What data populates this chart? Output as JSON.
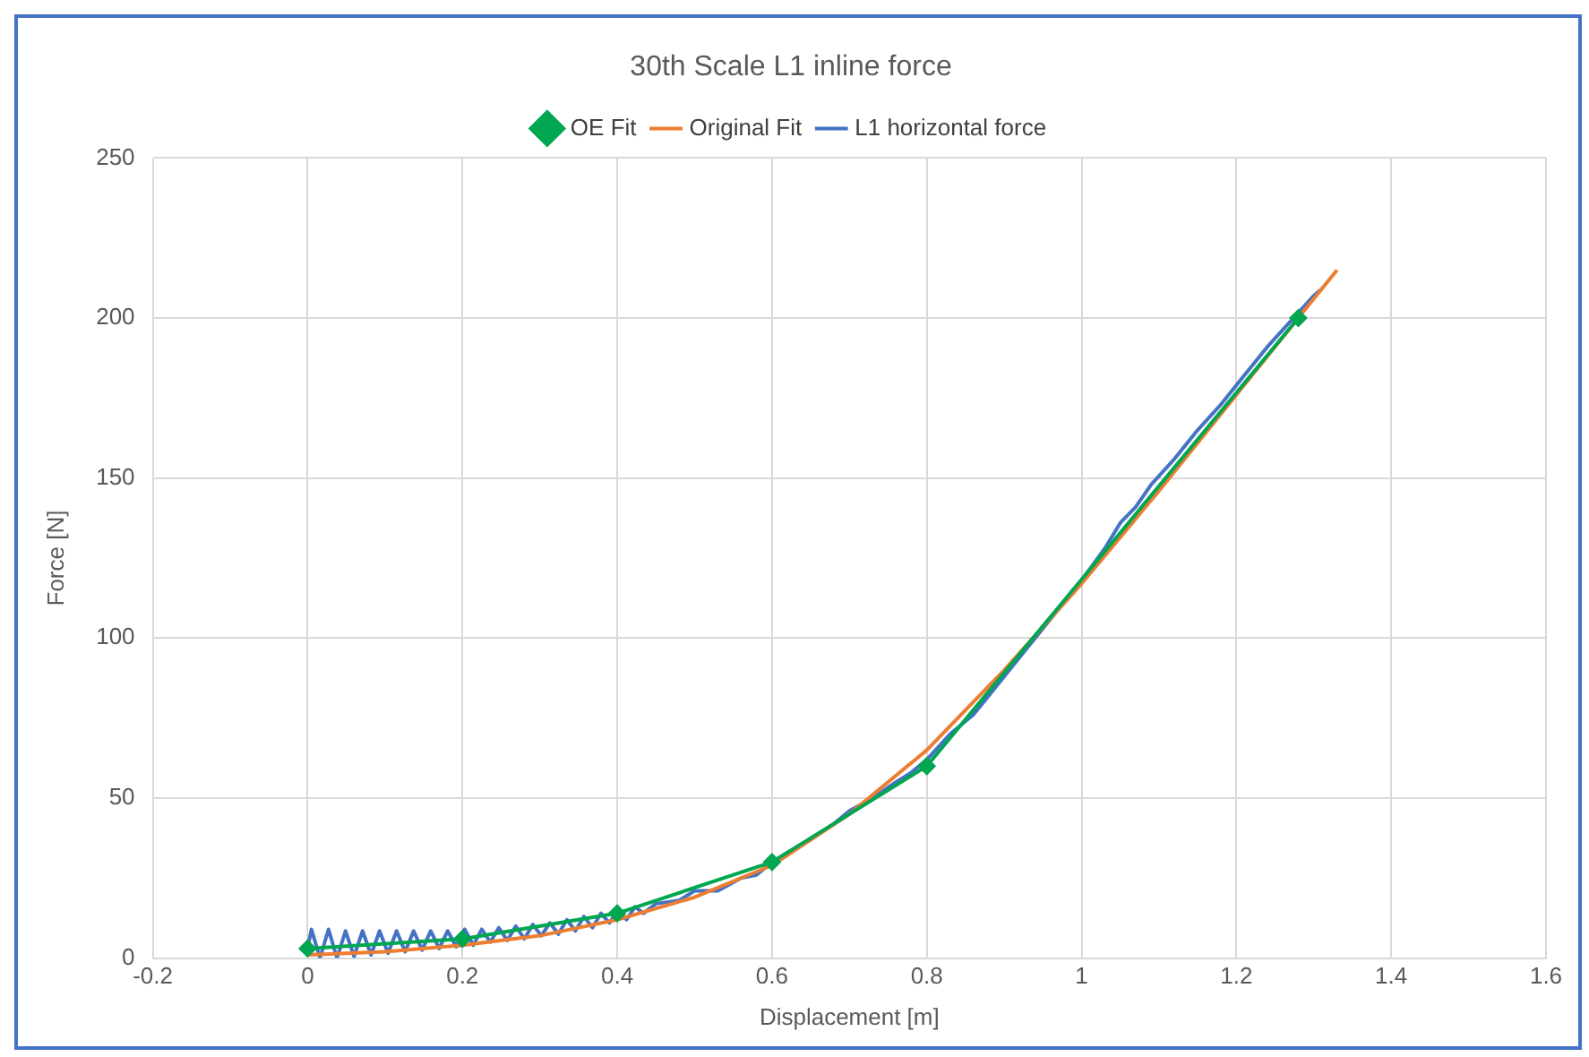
{
  "chart_data": {
    "type": "line",
    "title": "30th Scale L1 inline force",
    "xlabel": "Displacement [m]",
    "ylabel": "Force [N]",
    "xlim": [
      -0.2,
      1.6
    ],
    "xticks": [
      -0.2,
      0,
      0.2,
      0.4,
      0.6,
      0.8,
      1,
      1.2,
      1.4,
      1.6
    ],
    "ylim": [
      0,
      250
    ],
    "yticks": [
      0,
      50,
      100,
      150,
      200,
      250
    ],
    "grid": true,
    "legend": "top",
    "series": [
      {
        "name": "L1 horizontal force",
        "color": "#4472c4",
        "marker": "none",
        "x": [
          0,
          0.005,
          0.016,
          0.027,
          0.038,
          0.049,
          0.06,
          0.071,
          0.082,
          0.093,
          0.104,
          0.115,
          0.126,
          0.137,
          0.148,
          0.159,
          0.17,
          0.181,
          0.192,
          0.203,
          0.214,
          0.225,
          0.236,
          0.247,
          0.258,
          0.269,
          0.28,
          0.291,
          0.302,
          0.313,
          0.324,
          0.335,
          0.346,
          0.357,
          0.368,
          0.379,
          0.39,
          0.401,
          0.412,
          0.423,
          0.434,
          0.45,
          0.48,
          0.5,
          0.53,
          0.56,
          0.58,
          0.6,
          0.62,
          0.65,
          0.68,
          0.7,
          0.73,
          0.76,
          0.78,
          0.8,
          0.83,
          0.86,
          0.88,
          0.9,
          0.93,
          0.96,
          1.0,
          1.03,
          1.05,
          1.07,
          1.09,
          1.12,
          1.15,
          1.18,
          1.21,
          1.24,
          1.27,
          1.3,
          1.31
        ],
        "values": [
          3,
          9,
          0,
          9,
          0,
          8.5,
          0.5,
          8.5,
          1,
          8.5,
          1.5,
          8.5,
          2,
          8.5,
          2.5,
          8.5,
          3,
          8.5,
          3.5,
          9,
          4,
          9,
          5,
          9.5,
          5.5,
          10,
          6,
          10.5,
          7,
          11,
          7.5,
          12,
          8.5,
          13,
          9.5,
          14,
          11,
          15,
          12,
          16,
          14,
          17,
          18,
          21,
          21,
          25,
          26,
          30,
          33,
          37,
          42,
          46,
          50,
          55,
          58,
          62,
          70,
          76,
          82,
          88,
          97,
          106,
          118,
          128,
          136,
          141,
          148,
          156,
          165,
          173,
          182,
          191,
          199,
          207,
          209
        ]
      },
      {
        "name": "Original Fit",
        "color": "#ed7d31",
        "marker": "none",
        "x": [
          0,
          0.1,
          0.2,
          0.3,
          0.4,
          0.5,
          0.6,
          0.7,
          0.8,
          0.9,
          1.0,
          1.1,
          1.2,
          1.3,
          1.33
        ],
        "values": [
          1,
          2,
          4,
          7,
          12,
          19,
          29,
          45,
          65,
          90,
          117,
          146,
          176,
          206,
          215
        ]
      },
      {
        "name": "OE Fit",
        "color": "#00a650",
        "marker": "diamond",
        "x": [
          0,
          0.2,
          0.4,
          0.6,
          0.8,
          1.28
        ],
        "values": [
          3,
          6,
          14,
          30,
          60,
          200
        ]
      }
    ]
  }
}
